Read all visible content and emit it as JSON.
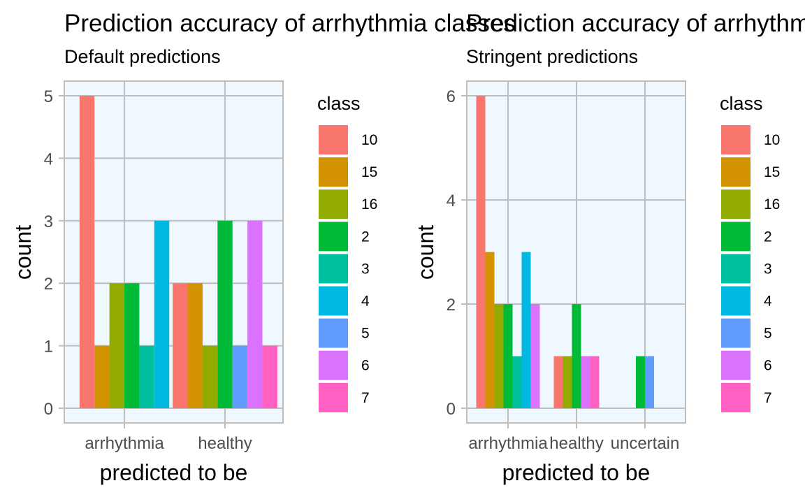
{
  "chart_data": [
    {
      "type": "bar",
      "title": "Prediction accuracy of arrhythmia classes",
      "subtitle": "Default predictions",
      "xlabel": "predicted to be",
      "ylabel": "count",
      "categories": [
        "arrhythmia",
        "healthy"
      ],
      "ylim": [
        0,
        5.25
      ],
      "yticks": [
        0,
        1,
        2,
        3,
        4,
        5
      ],
      "legend_title": "class",
      "legend_position": "right",
      "grid": true,
      "bars": [
        {
          "category": "arrhythmia",
          "class": "10",
          "value": 5
        },
        {
          "category": "arrhythmia",
          "class": "15",
          "value": 1
        },
        {
          "category": "arrhythmia",
          "class": "16",
          "value": 2
        },
        {
          "category": "arrhythmia",
          "class": "2",
          "value": 2
        },
        {
          "category": "arrhythmia",
          "class": "3",
          "value": 1
        },
        {
          "category": "arrhythmia",
          "class": "4",
          "value": 3
        },
        {
          "category": "healthy",
          "class": "10",
          "value": 2
        },
        {
          "category": "healthy",
          "class": "15",
          "value": 2
        },
        {
          "category": "healthy",
          "class": "16",
          "value": 1
        },
        {
          "category": "healthy",
          "class": "2",
          "value": 3
        },
        {
          "category": "healthy",
          "class": "5",
          "value": 1
        },
        {
          "category": "healthy",
          "class": "6",
          "value": 3
        },
        {
          "category": "healthy",
          "class": "7",
          "value": 1
        }
      ]
    },
    {
      "type": "bar",
      "title": "Prediction accuracy of arrhythmia classes",
      "subtitle": "Stringent predictions",
      "xlabel": "predicted to be",
      "ylabel": "count",
      "categories": [
        "arrhythmia",
        "healthy",
        "uncertain"
      ],
      "ylim": [
        0,
        6.3
      ],
      "yticks": [
        0,
        2,
        4,
        6
      ],
      "legend_title": "class",
      "legend_position": "right",
      "grid": true,
      "bars": [
        {
          "category": "arrhythmia",
          "class": "10",
          "value": 6
        },
        {
          "category": "arrhythmia",
          "class": "15",
          "value": 3
        },
        {
          "category": "arrhythmia",
          "class": "16",
          "value": 2
        },
        {
          "category": "arrhythmia",
          "class": "2",
          "value": 2
        },
        {
          "category": "arrhythmia",
          "class": "3",
          "value": 1
        },
        {
          "category": "arrhythmia",
          "class": "4",
          "value": 3
        },
        {
          "category": "arrhythmia",
          "class": "6",
          "value": 2
        },
        {
          "category": "healthy",
          "class": "10",
          "value": 1
        },
        {
          "category": "healthy",
          "class": "16",
          "value": 1
        },
        {
          "category": "healthy",
          "class": "2",
          "value": 2
        },
        {
          "category": "healthy",
          "class": "6",
          "value": 1
        },
        {
          "category": "healthy",
          "class": "7",
          "value": 1
        },
        {
          "category": "uncertain",
          "class": "2",
          "value": 1
        },
        {
          "category": "uncertain",
          "class": "5",
          "value": 1
        }
      ]
    }
  ],
  "classes": [
    {
      "name": "10",
      "color": "#F8766D"
    },
    {
      "name": "15",
      "color": "#D39200"
    },
    {
      "name": "16",
      "color": "#93AA00"
    },
    {
      "name": "2",
      "color": "#00BA38"
    },
    {
      "name": "3",
      "color": "#00C19F"
    },
    {
      "name": "4",
      "color": "#00B9E3"
    },
    {
      "name": "5",
      "color": "#619CFF"
    },
    {
      "name": "6",
      "color": "#DB72FB"
    },
    {
      "name": "7",
      "color": "#FF61C3"
    }
  ],
  "style": {
    "panel_background": "#F0F8FF",
    "grid_color": "#BEBEBE",
    "border_color": "#BEBEBE"
  }
}
